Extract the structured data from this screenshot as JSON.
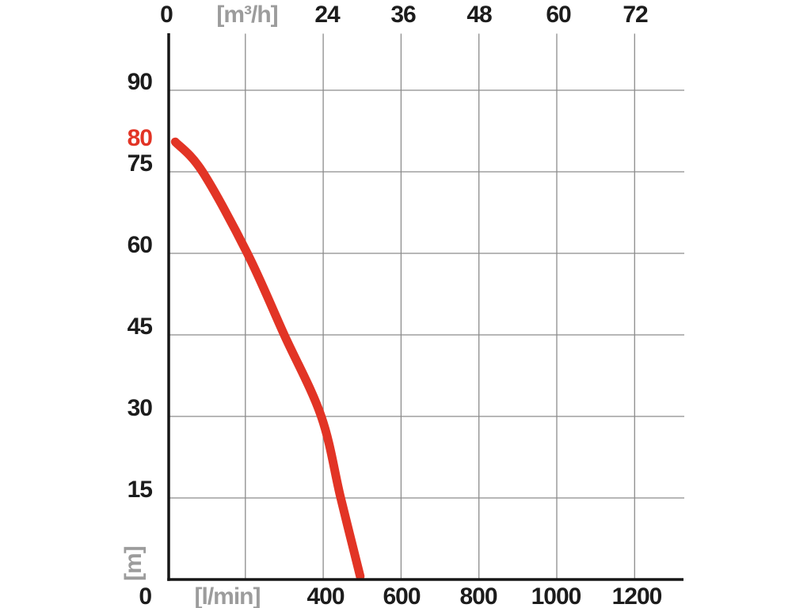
{
  "colors": {
    "curve": "#e23425",
    "grid": "#8c8c8c",
    "axis": "#161616",
    "tick_text": "#1c1c1c",
    "unit_text": "#9c9c9c",
    "highlight_text": "#e23425",
    "background": "#ffffff"
  },
  "chart_data": {
    "type": "line",
    "title": "",
    "grid": true,
    "legend": "none",
    "top_axis": {
      "unit_label": "[m³/h]",
      "tick_labels": [
        "0",
        "24",
        "36",
        "48",
        "60",
        "72"
      ],
      "tick_values_m3h": [
        0,
        24,
        36,
        48,
        60,
        72
      ],
      "range_m3h": [
        0,
        80
      ]
    },
    "bottom_axis": {
      "origin_label": "0",
      "unit_label": "[l/min]",
      "tick_labels": [
        "400",
        "600",
        "800",
        "1000",
        "1200"
      ],
      "tick_values_lmin": [
        400,
        600,
        800,
        1000,
        1200
      ],
      "gridline_values_lmin": [
        200,
        400,
        600,
        800,
        1000,
        1200
      ],
      "range_lmin": [
        0,
        1330
      ]
    },
    "left_axis": {
      "unit_label": "[m]",
      "tick_labels": [
        "90",
        "75",
        "60",
        "45",
        "30",
        "15"
      ],
      "tick_values_m": [
        90,
        75,
        60,
        45,
        30,
        15
      ],
      "highlight_label": "80",
      "highlight_value_m": 80,
      "range_m": [
        0,
        100
      ]
    },
    "series": [
      {
        "name": "pump-head-vs-flow-curve",
        "color": "#e23425",
        "x_unit": "l/min",
        "y_unit": "m",
        "points_lmin_m": [
          [
            20,
            80.5
          ],
          [
            90,
            75
          ],
          [
            205,
            60
          ],
          [
            300,
            45
          ],
          [
            395,
            30
          ],
          [
            445,
            15
          ],
          [
            495,
            0
          ]
        ]
      }
    ]
  }
}
